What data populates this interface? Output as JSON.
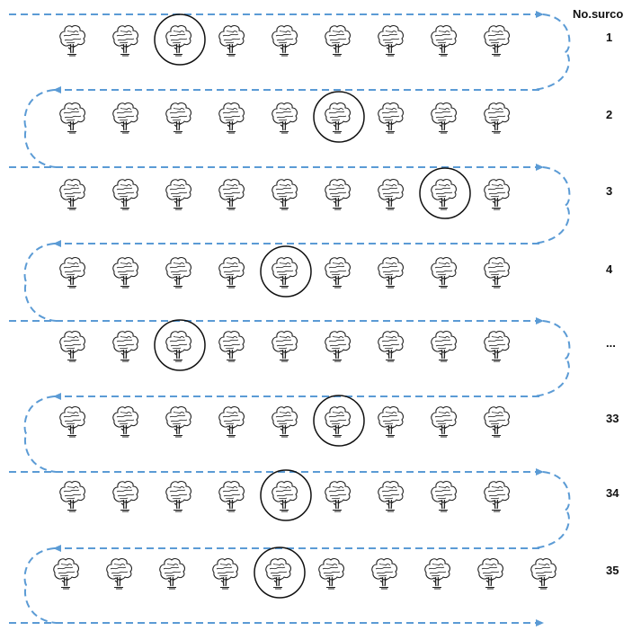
{
  "header": {
    "label": "No.surco"
  },
  "rows": [
    {
      "label": "1",
      "trees": 9,
      "circled": 3
    },
    {
      "label": "2",
      "trees": 9,
      "circled": 6
    },
    {
      "label": "3",
      "trees": 9,
      "circled": 8
    },
    {
      "label": "4",
      "trees": 9,
      "circled": 5
    },
    {
      "label": "...",
      "trees": 9,
      "circled": 3
    },
    {
      "label": "33",
      "trees": 9,
      "circled": 6
    },
    {
      "label": "34",
      "trees": 9,
      "circled": 5
    },
    {
      "label": "35",
      "trees": 10,
      "circled": 5
    }
  ],
  "colors": {
    "path": "#5b9bd5",
    "tree": "#222222",
    "circle": "#111111",
    "label": "#111111"
  },
  "icons": {
    "tree": "tree-icon",
    "selection": "selection-circle"
  }
}
